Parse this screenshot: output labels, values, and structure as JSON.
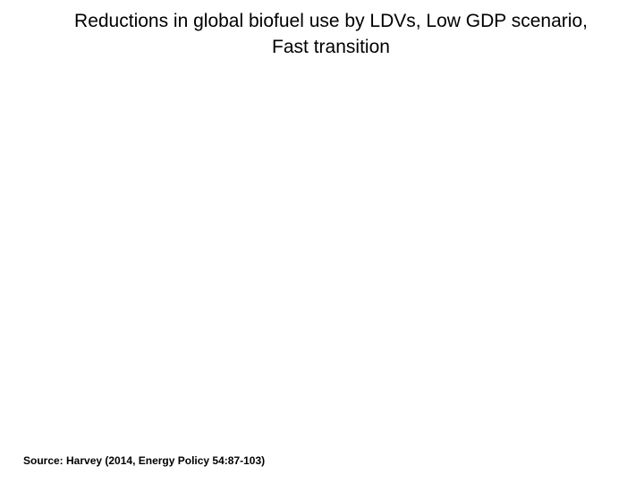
{
  "slide": {
    "title_line1": "Reductions in global biofuel use by LDVs, Low GDP scenario,",
    "title_line2": "Fast transition",
    "source": "Source: Harvey (2014, Energy Policy 54:87-103)"
  }
}
